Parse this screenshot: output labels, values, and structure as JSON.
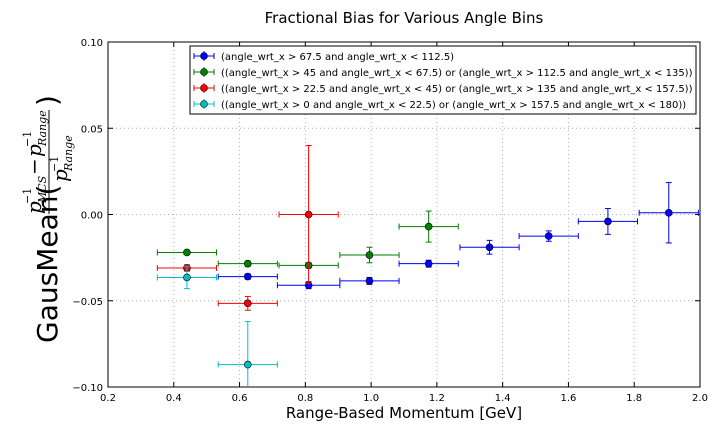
{
  "chart_data": {
    "type": "scatter",
    "title": "Fractional Bias for Various Angle Bins",
    "xlabel": "Range-Based Momentum [GeV]",
    "ylabel": {
      "prefix": "GausMean(",
      "suffix": ")",
      "p": "p",
      "exp": "−1",
      "mcs": "MCS",
      "range": "Range",
      "minus": "−"
    },
    "xlim": [
      0.2,
      2.0
    ],
    "ylim": [
      -0.1,
      0.1
    ],
    "xticks": [
      "0.2",
      "0.4",
      "0.6",
      "0.8",
      "1.0",
      "1.2",
      "1.4",
      "1.6",
      "1.8",
      "2.0"
    ],
    "yticks": [
      "−0.10",
      "−0.05",
      "0.00",
      "0.05",
      "0.10"
    ],
    "grid": true,
    "legend_position": "top-right",
    "series": [
      {
        "name": "(angle_wrt_x > 67.5 and angle_wrt_x < 112.5)",
        "color": "#0000ff",
        "points": [
          {
            "x": 0.625,
            "xerr": 0.09,
            "y": -0.036,
            "yerr": 0.0015
          },
          {
            "x": 0.81,
            "xerr": 0.095,
            "y": -0.041,
            "yerr": 0.002
          },
          {
            "x": 0.995,
            "xerr": 0.09,
            "y": -0.0385,
            "yerr": 0.002
          },
          {
            "x": 1.175,
            "xerr": 0.09,
            "y": -0.0285,
            "yerr": 0.002
          },
          {
            "x": 1.36,
            "xerr": 0.09,
            "y": -0.019,
            "yerr": 0.004
          },
          {
            "x": 1.54,
            "xerr": 0.09,
            "y": -0.0125,
            "yerr": 0.003
          },
          {
            "x": 1.72,
            "xerr": 0.09,
            "y": -0.004,
            "yerr": 0.0075
          },
          {
            "x": 1.905,
            "xerr": 0.09,
            "y": 0.001,
            "yerr": 0.0175
          }
        ]
      },
      {
        "name": "((angle_wrt_x > 45 and angle_wrt_x < 67.5) or (angle_wrt_x > 112.5 and angle_wrt_x < 135))",
        "color": "#007f00",
        "points": [
          {
            "x": 0.44,
            "xerr": 0.09,
            "y": -0.022,
            "yerr": 0.0012
          },
          {
            "x": 0.625,
            "xerr": 0.09,
            "y": -0.0285,
            "yerr": 0.0015
          },
          {
            "x": 0.81,
            "xerr": 0.09,
            "y": -0.0295,
            "yerr": 0.0015
          },
          {
            "x": 0.995,
            "xerr": 0.09,
            "y": -0.0235,
            "yerr": 0.0045
          },
          {
            "x": 1.175,
            "xerr": 0.09,
            "y": -0.007,
            "yerr": 0.009
          }
        ]
      },
      {
        "name": "((angle_wrt_x > 22.5 and angle_wrt_x < 45) or (angle_wrt_x > 135 and angle_wrt_x < 157.5))",
        "color": "#ff0000",
        "points": [
          {
            "x": 0.44,
            "xerr": 0.09,
            "y": -0.031,
            "yerr": 0.0018
          },
          {
            "x": 0.625,
            "xerr": 0.09,
            "y": -0.0515,
            "yerr": 0.004
          },
          {
            "x": 0.81,
            "xerr": 0.09,
            "y": 0.0,
            "yerr": 0.04
          }
        ]
      },
      {
        "name": "((angle_wrt_x > 0 and angle_wrt_x < 22.5) or (angle_wrt_x > 157.5 and angle_wrt_x < 180))",
        "color": "#00bfbf",
        "points": [
          {
            "x": 0.44,
            "xerr": 0.09,
            "y": -0.0365,
            "yerr": 0.0065
          },
          {
            "x": 0.625,
            "xerr": 0.09,
            "y": -0.087,
            "yerr": 0.025
          }
        ]
      }
    ]
  }
}
